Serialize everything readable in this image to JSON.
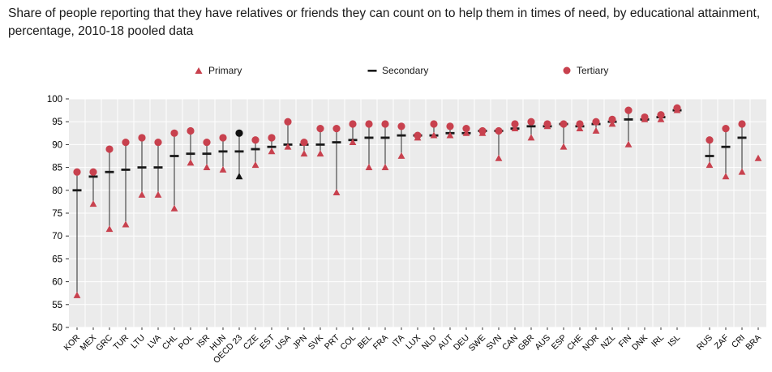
{
  "title": "Share of people reporting that they have relatives or friends they can count on to help them in times of need, by educational attainment, percentage, 2010-18 pooled data",
  "legend": {
    "items": [
      {
        "label": "Primary",
        "marker": "triangle"
      },
      {
        "label": "Secondary",
        "marker": "dash"
      },
      {
        "label": "Tertiary",
        "marker": "circle"
      }
    ]
  },
  "colors": {
    "series": "#c8414e",
    "secondary": "#1a1a1a",
    "highlight": "#111111",
    "plot_bg": "#ebebeb",
    "grid": "#ffffff",
    "connector": "#2b2b2b",
    "axis": "#333333"
  },
  "chart_data": {
    "type": "scatter",
    "subtype": "range-dot-plot",
    "title": "Share of people reporting that they have relatives or friends they can count on to help them in times of need, by educational attainment, percentage, 2010-18 pooled data",
    "xlabel": "",
    "ylabel": "",
    "ylim": [
      50,
      100
    ],
    "yticks": [
      50,
      55,
      60,
      65,
      70,
      75,
      80,
      85,
      90,
      95,
      100
    ],
    "grid": true,
    "legend_position": "top",
    "highlight_index": 10,
    "gap_after_index": 37,
    "categories": [
      "KOR",
      "MEX",
      "GRC",
      "TUR",
      "LTU",
      "LVA",
      "CHL",
      "POL",
      "ISR",
      "HUN",
      "OECD 23",
      "CZE",
      "EST",
      "USA",
      "JPN",
      "SVK",
      "PRT",
      "COL",
      "BEL",
      "FRA",
      "ITA",
      "LUX",
      "NLD",
      "AUT",
      "DEU",
      "SWE",
      "SVN",
      "CAN",
      "GBR",
      "AUS",
      "ESP",
      "CHE",
      "NOR",
      "NZL",
      "FIN",
      "DNK",
      "IRL",
      "ISL",
      "RUS",
      "ZAF",
      "CRI",
      "BRA"
    ],
    "series": [
      {
        "name": "Primary",
        "marker": "triangle",
        "values": [
          57,
          77,
          71.5,
          72.5,
          79,
          79,
          76,
          86,
          85,
          84.5,
          83,
          85.5,
          88.5,
          89.5,
          88,
          88,
          79.5,
          90.5,
          85,
          85,
          87.5,
          91.5,
          92,
          92,
          92.5,
          92.5,
          87,
          93.5,
          91.5,
          94,
          89.5,
          93.5,
          93,
          94.5,
          90,
          95.5,
          95.5,
          97.5,
          85.5,
          83,
          84,
          87
        ]
      },
      {
        "name": "Secondary",
        "marker": "dash",
        "values": [
          80,
          83,
          84,
          84.5,
          85,
          85,
          87.5,
          88,
          88,
          88.5,
          88.5,
          89,
          89.5,
          90,
          90,
          90,
          90.5,
          91,
          91.5,
          91.5,
          92,
          92,
          92,
          92.5,
          92.5,
          93,
          93,
          93.5,
          94,
          94,
          94.5,
          94,
          94.5,
          95,
          95.5,
          95.5,
          96,
          97.5,
          87.5,
          89.5,
          91.5,
          null
        ]
      },
      {
        "name": "Tertiary",
        "marker": "circle",
        "values": [
          84,
          84,
          89,
          90.5,
          91.5,
          90.5,
          92.5,
          93,
          90.5,
          91.5,
          92.5,
          91,
          91.5,
          95,
          90.5,
          93.5,
          93.5,
          94.5,
          94.5,
          94.5,
          94,
          92,
          94.5,
          94,
          93.5,
          93,
          93,
          94.5,
          95,
          94.5,
          94.5,
          94.5,
          95,
          95.5,
          97.5,
          96,
          96.5,
          98,
          91,
          93.5,
          94.5,
          null
        ]
      }
    ]
  }
}
